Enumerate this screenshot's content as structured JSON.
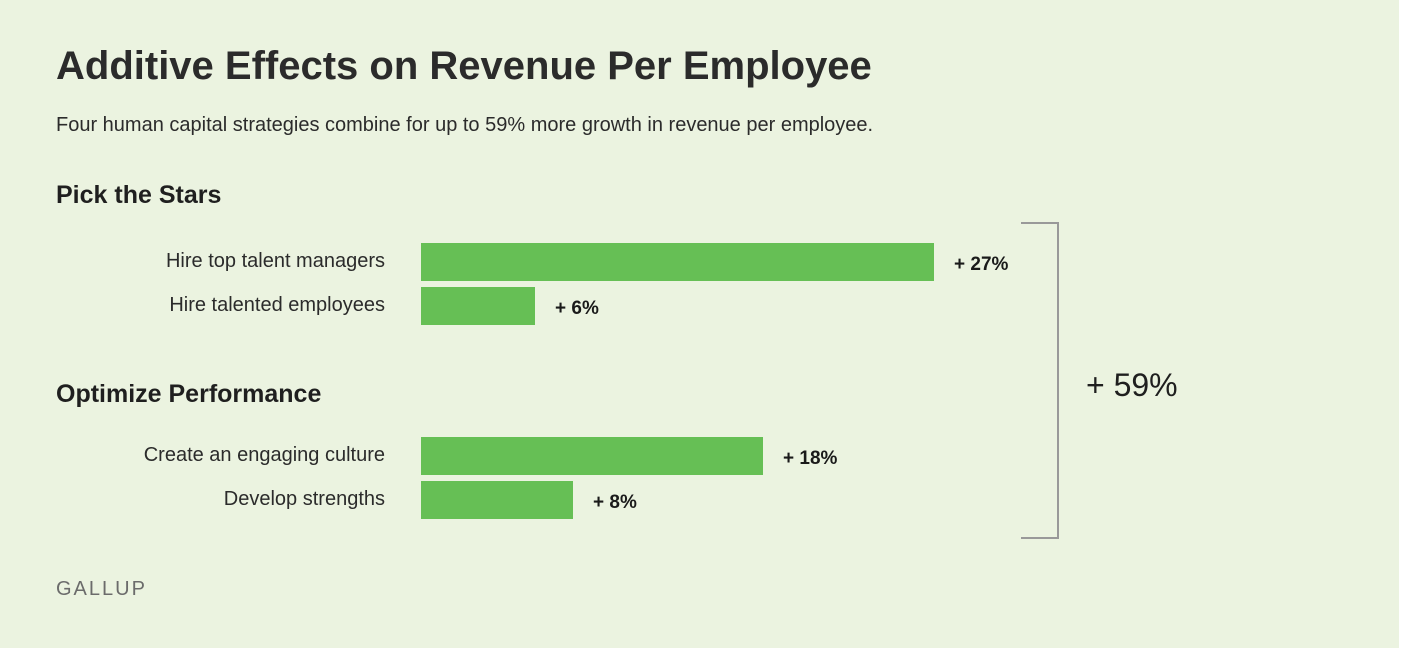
{
  "title": "Additive Effects on Revenue Per Employee",
  "subtitle": "Four human capital strategies combine for up to 59% more growth in revenue per employee.",
  "footer": "GALLUP",
  "colors": {
    "background": "#ebf3e0",
    "bar": "#66bf55",
    "bracket": "#999999"
  },
  "chart_data": {
    "type": "bar",
    "orientation": "horizontal",
    "groups": [
      {
        "name": "Pick the Stars",
        "categories": [
          "Hire top talent managers",
          "Hire talented employees"
        ],
        "values": [
          27,
          6
        ],
        "value_labels": [
          "+ 27%",
          "+ 6%"
        ]
      },
      {
        "name": "Optimize Performance",
        "categories": [
          "Create an engaging culture",
          "Develop strengths"
        ],
        "values": [
          18,
          8
        ],
        "value_labels": [
          "+ 18%",
          "+ 8%"
        ]
      }
    ],
    "total": 59,
    "total_label": "+ 59%",
    "xlim": [
      0,
      27
    ],
    "grid": false,
    "legend": "none"
  }
}
